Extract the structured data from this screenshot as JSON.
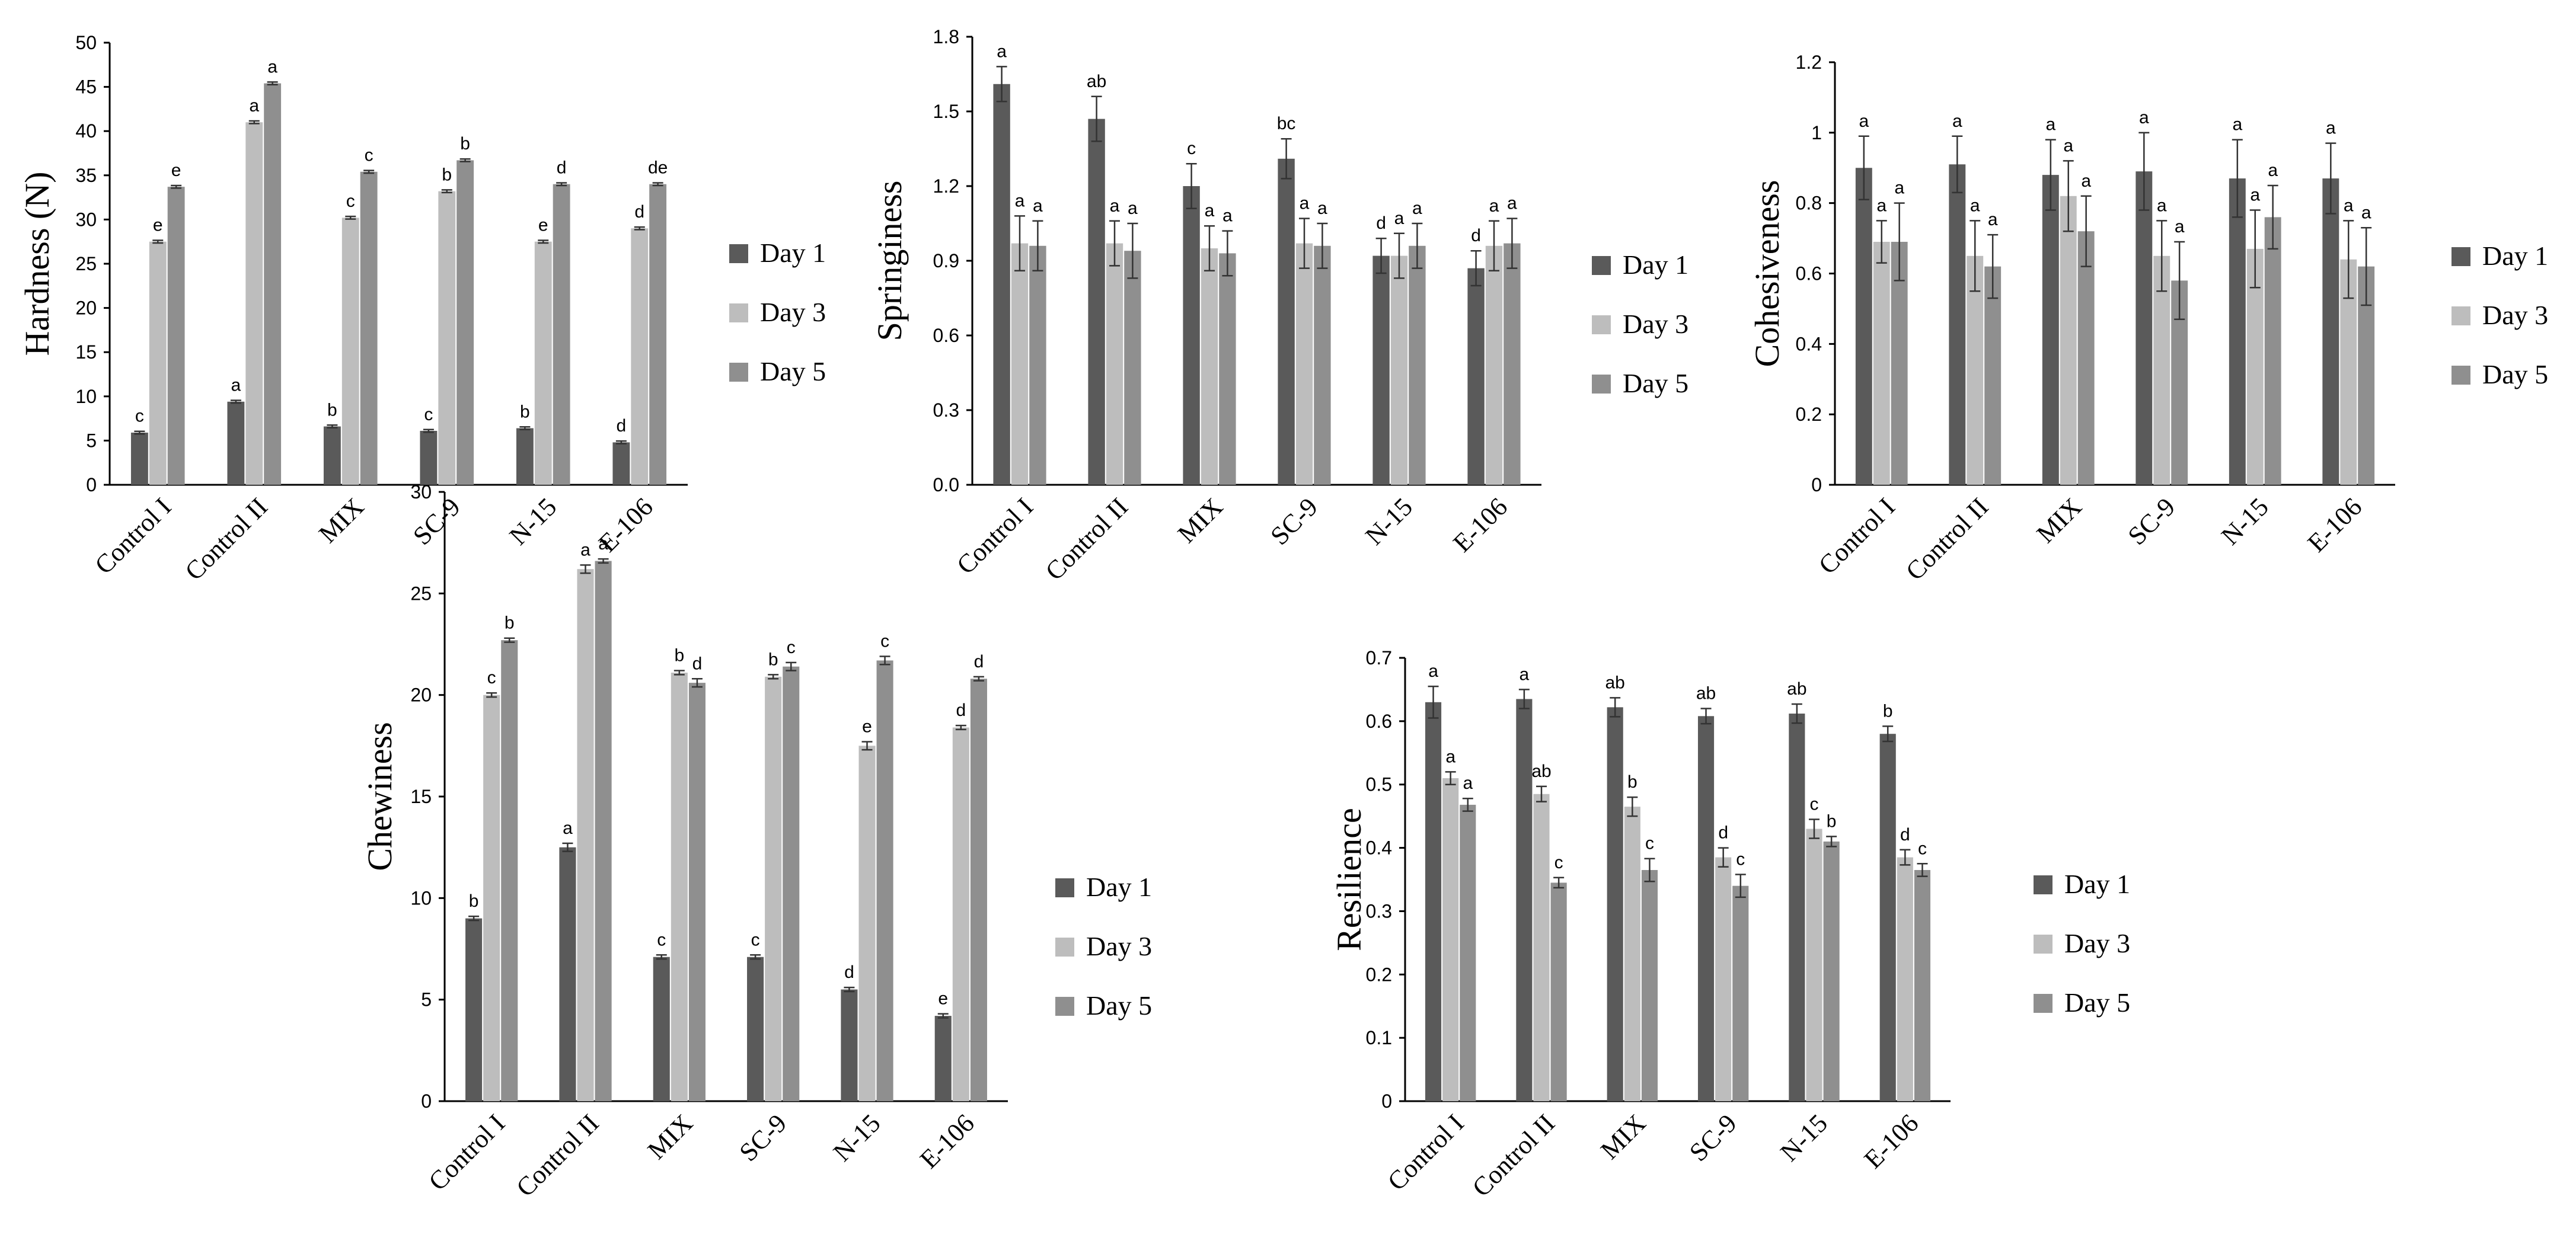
{
  "colors": {
    "series": [
      "#5a5a5a",
      "#bdbdbd",
      "#8f8f8f"
    ]
  },
  "chart_data": [
    {
      "type": "bar",
      "ylabel": "Hardness (N)",
      "categories": [
        "Control I",
        "Control II",
        "MIX",
        "SC-9",
        "N-15",
        "E-106"
      ],
      "ylim": [
        0,
        50
      ],
      "yticks": [
        0,
        5,
        10,
        15,
        20,
        25,
        30,
        35,
        40,
        45,
        50
      ],
      "ytick_labels": [
        "0",
        "5",
        "10",
        "15",
        "20",
        "25",
        "30",
        "35",
        "40",
        "45",
        "50"
      ],
      "legend": [
        "Day 1",
        "Day 3",
        "Day 5"
      ],
      "series": [
        {
          "name": "Day 1",
          "values": [
            5.9,
            9.4,
            6.6,
            6.1,
            6.4,
            4.8
          ],
          "errors": [
            0.15,
            0.15,
            0.15,
            0.15,
            0.15,
            0.15
          ],
          "labels": [
            "c",
            "a",
            "b",
            "c",
            "b",
            "d"
          ]
        },
        {
          "name": "Day 3",
          "values": [
            27.5,
            41.0,
            30.2,
            33.2,
            27.5,
            29.0
          ],
          "errors": [
            0.15,
            0.15,
            0.15,
            0.15,
            0.15,
            0.15
          ],
          "labels": [
            "e",
            "a",
            "c",
            "b",
            "e",
            "d"
          ]
        },
        {
          "name": "Day 5",
          "values": [
            33.7,
            45.4,
            35.4,
            36.7,
            34.0,
            34.0
          ],
          "errors": [
            0.15,
            0.15,
            0.15,
            0.15,
            0.15,
            0.15
          ],
          "labels": [
            "e",
            "a",
            "c",
            "b",
            "d",
            "de"
          ]
        }
      ]
    },
    {
      "type": "bar",
      "ylabel": "Springiness",
      "categories": [
        "Control I",
        "Control II",
        "MIX",
        "SC-9",
        "N-15",
        "E-106"
      ],
      "ylim": [
        0,
        1.8
      ],
      "yticks": [
        0,
        0.3,
        0.6,
        0.9,
        1.2,
        1.5,
        1.8
      ],
      "ytick_labels": [
        "0.0",
        "0.3",
        "0.6",
        "0.9",
        "1.2",
        "1.5",
        "1.8"
      ],
      "legend": [
        "Day 1",
        "Day 3",
        "Day 5"
      ],
      "series": [
        {
          "name": "Day 1",
          "values": [
            1.61,
            1.47,
            1.2,
            1.31,
            0.92,
            0.87
          ],
          "errors": [
            0.07,
            0.09,
            0.09,
            0.08,
            0.07,
            0.07
          ],
          "labels": [
            "a",
            "ab",
            "c",
            "bc",
            "d",
            "d"
          ]
        },
        {
          "name": "Day 3",
          "values": [
            0.97,
            0.97,
            0.95,
            0.97,
            0.92,
            0.96
          ],
          "errors": [
            0.11,
            0.09,
            0.09,
            0.1,
            0.09,
            0.1
          ],
          "labels": [
            "a",
            "a",
            "a",
            "a",
            "a",
            "a"
          ]
        },
        {
          "name": "Day 5",
          "values": [
            0.96,
            0.94,
            0.93,
            0.96,
            0.96,
            0.97
          ],
          "errors": [
            0.1,
            0.11,
            0.09,
            0.09,
            0.09,
            0.1
          ],
          "labels": [
            "a",
            "a",
            "a",
            "a",
            "a",
            "a"
          ]
        }
      ]
    },
    {
      "type": "bar",
      "ylabel": "Cohesiveness",
      "categories": [
        "Control I",
        "Control II",
        "MIX",
        "SC-9",
        "N-15",
        "E-106"
      ],
      "ylim": [
        0,
        1.2
      ],
      "yticks": [
        0,
        0.2,
        0.4,
        0.6,
        0.8,
        1,
        1.2
      ],
      "ytick_labels": [
        "0",
        "0.2",
        "0.4",
        "0.6",
        "0.8",
        "1",
        "1.2"
      ],
      "legend": [
        "Day 1",
        "Day 3",
        "Day 5"
      ],
      "series": [
        {
          "name": "Day 1",
          "values": [
            0.9,
            0.91,
            0.88,
            0.89,
            0.87,
            0.87
          ],
          "errors": [
            0.09,
            0.08,
            0.1,
            0.11,
            0.11,
            0.1
          ],
          "labels": [
            "a",
            "a",
            "a",
            "a",
            "a",
            "a"
          ]
        },
        {
          "name": "Day 3",
          "values": [
            0.69,
            0.65,
            0.82,
            0.65,
            0.67,
            0.64
          ],
          "errors": [
            0.06,
            0.1,
            0.1,
            0.1,
            0.11,
            0.11
          ],
          "labels": [
            "a",
            "a",
            "a",
            "a",
            "a",
            "a"
          ]
        },
        {
          "name": "Day 5",
          "values": [
            0.69,
            0.62,
            0.72,
            0.58,
            0.76,
            0.62
          ],
          "errors": [
            0.11,
            0.09,
            0.1,
            0.11,
            0.09,
            0.11
          ],
          "labels": [
            "a",
            "a",
            "a",
            "a",
            "a",
            "a"
          ]
        }
      ]
    },
    {
      "type": "bar",
      "ylabel": "Chewiness",
      "categories": [
        "Control I",
        "Control II",
        "MIX",
        "SC-9",
        "N-15",
        "E-106"
      ],
      "ylim": [
        0,
        30
      ],
      "yticks": [
        0,
        5,
        10,
        15,
        20,
        25,
        30
      ],
      "ytick_labels": [
        "0",
        "5",
        "10",
        "15",
        "20",
        "25",
        "30"
      ],
      "legend": [
        "Day 1",
        "Day 3",
        "Day 5"
      ],
      "series": [
        {
          "name": "Day 1",
          "values": [
            9.0,
            12.5,
            7.1,
            7.1,
            5.5,
            4.2
          ],
          "errors": [
            0.1,
            0.2,
            0.1,
            0.1,
            0.1,
            0.1
          ],
          "labels": [
            "b",
            "a",
            "c",
            "c",
            "d",
            "e"
          ]
        },
        {
          "name": "Day 3",
          "values": [
            20.0,
            26.2,
            21.1,
            20.9,
            17.5,
            18.4
          ],
          "errors": [
            0.1,
            0.2,
            0.1,
            0.1,
            0.2,
            0.1
          ],
          "labels": [
            "c",
            "a",
            "b",
            "b",
            "e",
            "d"
          ]
        },
        {
          "name": "Day 5",
          "values": [
            22.7,
            26.6,
            20.6,
            21.4,
            21.7,
            20.8
          ],
          "errors": [
            0.1,
            0.1,
            0.2,
            0.2,
            0.2,
            0.1
          ],
          "labels": [
            "b",
            "a",
            "d",
            "c",
            "c",
            "d"
          ]
        }
      ]
    },
    {
      "type": "bar",
      "ylabel": "Resilience",
      "categories": [
        "Control I",
        "Control II",
        "MIX",
        "SC-9",
        "N-15",
        "E-106"
      ],
      "ylim": [
        0,
        0.7
      ],
      "yticks": [
        0,
        0.1,
        0.2,
        0.3,
        0.4,
        0.5,
        0.6,
        0.7
      ],
      "ytick_labels": [
        "0",
        "0.1",
        "0.2",
        "0.3",
        "0.4",
        "0.5",
        "0.6",
        "0.7"
      ],
      "legend": [
        "Day 1",
        "Day 3",
        "Day 5"
      ],
      "series": [
        {
          "name": "Day 1",
          "values": [
            0.63,
            0.635,
            0.622,
            0.608,
            0.612,
            0.58
          ],
          "errors": [
            0.025,
            0.015,
            0.015,
            0.012,
            0.015,
            0.012
          ],
          "labels": [
            "a",
            "a",
            "ab",
            "ab",
            "ab",
            "b"
          ]
        },
        {
          "name": "Day 3",
          "values": [
            0.51,
            0.485,
            0.465,
            0.385,
            0.43,
            0.385
          ],
          "errors": [
            0.01,
            0.012,
            0.015,
            0.015,
            0.015,
            0.012
          ],
          "labels": [
            "a",
            "ab",
            "b",
            "d",
            "c",
            "d"
          ]
        },
        {
          "name": "Day 5",
          "values": [
            0.468,
            0.345,
            0.365,
            0.34,
            0.41,
            0.365
          ],
          "errors": [
            0.01,
            0.008,
            0.018,
            0.018,
            0.008,
            0.01
          ],
          "labels": [
            "a",
            "c",
            "c",
            "c",
            "b",
            "c"
          ]
        }
      ]
    }
  ]
}
